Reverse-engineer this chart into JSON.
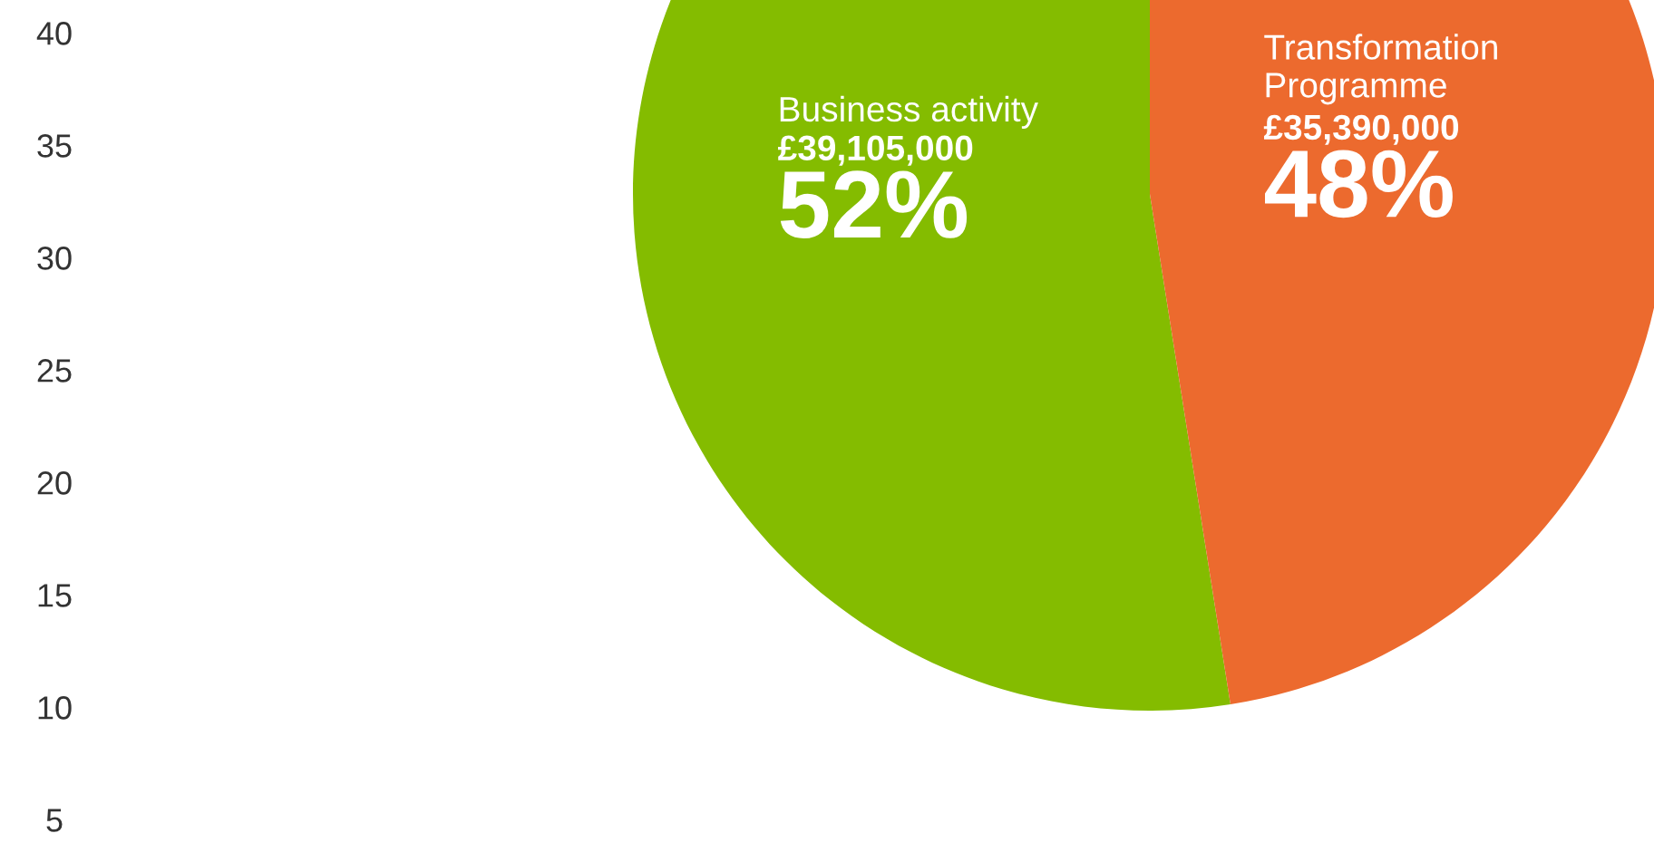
{
  "chart_data": {
    "type": "pie",
    "categories": [
      "Business activity",
      "Transformation Programme"
    ],
    "values": [
      39105000,
      35390000
    ],
    "colors": [
      "#84bc00",
      "#ec6a2e"
    ],
    "value_labels": [
      "£39,105,000\n52%",
      "£35,390,000\n48%"
    ],
    "annotations": [
      "40",
      "35",
      "30",
      "25",
      "20",
      "15",
      "10",
      "5"
    ]
  }
}
